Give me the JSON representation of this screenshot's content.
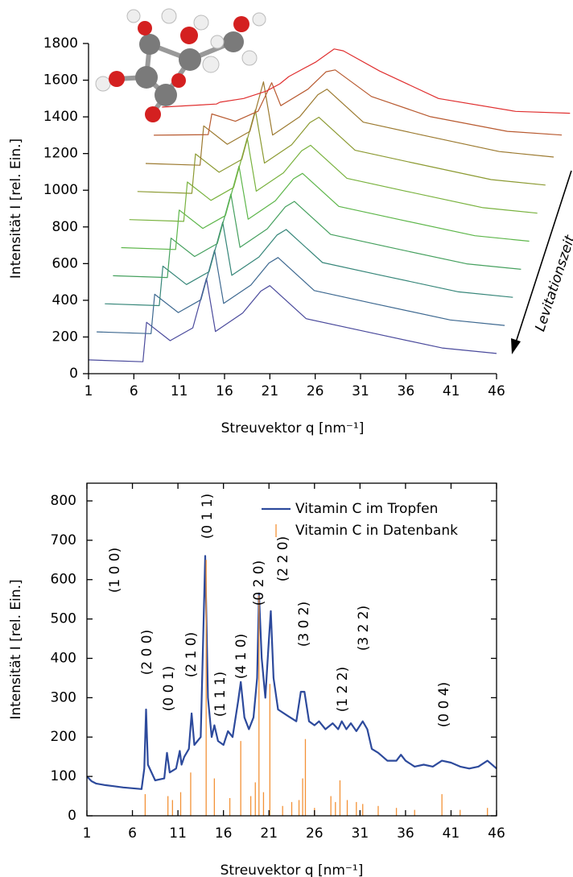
{
  "chart_data": [
    {
      "type": "line",
      "xlabel": "Streuvektor q [nm⁻¹]",
      "ylabel": "Intensität I [rel. Ein.]",
      "annotation": "Levitationszeit",
      "xlim": [
        1,
        46
      ],
      "ylim": [
        0,
        1800
      ],
      "xticks": [
        1,
        6,
        11,
        16,
        21,
        26,
        31,
        36,
        41,
        46
      ],
      "yticks": [
        0,
        200,
        400,
        600,
        800,
        1000,
        1200,
        1400,
        1600,
        1800
      ],
      "series": [
        {
          "color": "#4a4a9c",
          "x": [
            1,
            7,
            7.4,
            10,
            12.5,
            14,
            15,
            18,
            20,
            21,
            25,
            31.5,
            40,
            46
          ],
          "values": [
            75,
            65,
            280,
            180,
            250,
            520,
            230,
            330,
            450,
            480,
            300,
            230,
            140,
            110
          ]
        },
        {
          "color": "#3d6890",
          "x": [
            1.9,
            7.9,
            8.3,
            10.9,
            13.4,
            14.9,
            15.9,
            18.9,
            20.9,
            21.9,
            25.9,
            32.4,
            40.9,
            46.9
          ],
          "values": [
            228,
            218,
            433,
            333,
            403,
            673,
            383,
            483,
            603,
            633,
            453,
            383,
            293,
            263
          ]
        },
        {
          "color": "#368679",
          "x": [
            2.8,
            8.8,
            9.2,
            11.8,
            14.3,
            15.8,
            16.8,
            19.8,
            21.8,
            22.8,
            26.8,
            33.3,
            41.8,
            47.8
          ],
          "values": [
            381,
            371,
            586,
            486,
            556,
            826,
            536,
            636,
            756,
            786,
            606,
            536,
            446,
            416
          ]
        },
        {
          "color": "#45a05e",
          "x": [
            3.7,
            9.7,
            10.1,
            12.7,
            15.2,
            16.7,
            17.7,
            20.7,
            22.7,
            23.7,
            27.7,
            34.2,
            42.7,
            48.7
          ],
          "values": [
            534,
            524,
            739,
            639,
            709,
            979,
            689,
            789,
            909,
            939,
            759,
            689,
            599,
            569
          ]
        },
        {
          "color": "#5db64a",
          "x": [
            4.6,
            10.6,
            11,
            13.6,
            16.1,
            17.6,
            18.6,
            21.6,
            23.6,
            24.6,
            28.6,
            35.1,
            43.6,
            49.6
          ],
          "values": [
            687,
            677,
            892,
            792,
            862,
            1132,
            842,
            942,
            1062,
            1092,
            912,
            842,
            752,
            722
          ]
        },
        {
          "color": "#79b23e",
          "x": [
            5.5,
            11.5,
            11.9,
            14.5,
            17,
            18.5,
            19.5,
            22.5,
            24.5,
            25.5,
            29.5,
            36,
            44.5,
            50.5
          ],
          "values": [
            840,
            830,
            1045,
            945,
            1015,
            1285,
            995,
            1095,
            1215,
            1245,
            1065,
            995,
            905,
            875
          ]
        },
        {
          "color": "#8c9a32",
          "x": [
            6.4,
            12.4,
            12.8,
            15.4,
            17.9,
            19.4,
            20.4,
            23.4,
            25.4,
            26.4,
            30.4,
            36.9,
            45.4,
            51.4
          ],
          "values": [
            993,
            983,
            1198,
            1098,
            1168,
            1438,
            1148,
            1248,
            1368,
            1398,
            1218,
            1148,
            1058,
            1028
          ]
        },
        {
          "color": "#9c7a30",
          "x": [
            7.3,
            13.3,
            13.7,
            16.3,
            18.8,
            20.3,
            21.3,
            24.3,
            26.3,
            27.3,
            31.3,
            37.8,
            46.3,
            52.3
          ],
          "values": [
            1146,
            1136,
            1351,
            1251,
            1321,
            1591,
            1301,
            1401,
            1521,
            1551,
            1371,
            1301,
            1211,
            1181
          ]
        },
        {
          "color": "#b85a30",
          "x": [
            8.2,
            14.2,
            14.6,
            17.2,
            19.7,
            21.2,
            22.2,
            25.2,
            27.2,
            28.2,
            32.2,
            38.7,
            47.2,
            53.2
          ],
          "values": [
            1300,
            1303,
            1416,
            1376,
            1431,
            1586,
            1461,
            1551,
            1646,
            1656,
            1511,
            1401,
            1321,
            1301
          ]
        },
        {
          "color": "#e03030",
          "x": [
            9.1,
            15.1,
            15.5,
            18.1,
            20.6,
            22.1,
            23.1,
            26.1,
            28.1,
            29.1,
            33.1,
            39.6,
            48.1,
            54.1
          ],
          "values": [
            1453,
            1470,
            1480,
            1500,
            1540,
            1580,
            1620,
            1700,
            1770,
            1760,
            1650,
            1500,
            1430,
            1420
          ]
        }
      ]
    },
    {
      "type": "line",
      "xlabel": "Streuvektor q [nm⁻¹]",
      "ylabel": "Intensität I [rel. Ein.]",
      "xlim": [
        1,
        46
      ],
      "ylim": [
        0,
        845
      ],
      "xticks": [
        1,
        6,
        11,
        16,
        21,
        26,
        31,
        36,
        41,
        46
      ],
      "yticks": [
        0,
        100,
        200,
        300,
        400,
        500,
        600,
        700,
        800
      ],
      "legend": "upper right",
      "annotations": [
        "(1 0 0)",
        "(2 0 0)",
        "(0 0 1)",
        "(2 1 0)",
        "(0 1 1)",
        "(1 1 1)",
        "(4 1 0)",
        "(0 2 0)",
        "(2 2 0)",
        "(3 0 2)",
        "(1 2 2)",
        "(3 2 2)",
        "(0 0 4)"
      ],
      "series": [
        {
          "name": "Vitamin C im Tropfen",
          "color": "#2d4a9c",
          "type": "line",
          "x": [
            1,
            1.5,
            2,
            3,
            4,
            5,
            6,
            7,
            7.3,
            7.5,
            7.7,
            8.5,
            9.5,
            9.8,
            10.1,
            10.8,
            11.2,
            11.4,
            11.7,
            12.2,
            12.5,
            12.8,
            13.5,
            14,
            14.3,
            14.7,
            15,
            15.4,
            16,
            16.5,
            17,
            17.6,
            17.9,
            18.3,
            18.8,
            19.3,
            19.7,
            19.9,
            20.2,
            20.6,
            21,
            21.2,
            21.5,
            22,
            23,
            24,
            24.5,
            24.9,
            25.4,
            26,
            26.5,
            27.2,
            28,
            28.6,
            29,
            29.5,
            30,
            30.6,
            31.3,
            31.8,
            32.3,
            33,
            34,
            35,
            35.5,
            36,
            37,
            38,
            39,
            40,
            41,
            42,
            43,
            44,
            45,
            46
          ],
          "values": [
            100,
            88,
            82,
            78,
            75,
            72,
            70,
            68,
            120,
            270,
            130,
            90,
            95,
            160,
            110,
            120,
            165,
            130,
            150,
            170,
            260,
            180,
            200,
            660,
            300,
            200,
            230,
            190,
            180,
            215,
            200,
            290,
            340,
            250,
            220,
            250,
            350,
            565,
            400,
            300,
            450,
            520,
            350,
            270,
            255,
            240,
            315,
            315,
            240,
            230,
            240,
            220,
            235,
            220,
            240,
            220,
            235,
            215,
            240,
            220,
            170,
            160,
            140,
            140,
            155,
            140,
            125,
            130,
            125,
            140,
            135,
            125,
            120,
            125,
            140,
            120
          ]
        },
        {
          "name": "Vitamin C in Datenbank",
          "color": "#f39237",
          "type": "stem",
          "x": [
            7.4,
            9.9,
            10.4,
            11.3,
            12.4,
            14.1,
            15,
            16.7,
            17.9,
            19,
            19.5,
            19.9,
            20.4,
            21.1,
            22.5,
            23.5,
            24.3,
            24.7,
            25,
            26,
            27.8,
            28.3,
            28.8,
            29.6,
            30.6,
            31.3,
            33,
            35,
            37,
            40,
            42,
            45
          ],
          "values": [
            55,
            50,
            40,
            60,
            110,
            650,
            95,
            45,
            190,
            50,
            85,
            560,
            60,
            335,
            25,
            35,
            40,
            95,
            195,
            20,
            50,
            35,
            90,
            40,
            35,
            30,
            25,
            20,
            15,
            55,
            15,
            20
          ]
        }
      ]
    }
  ]
}
